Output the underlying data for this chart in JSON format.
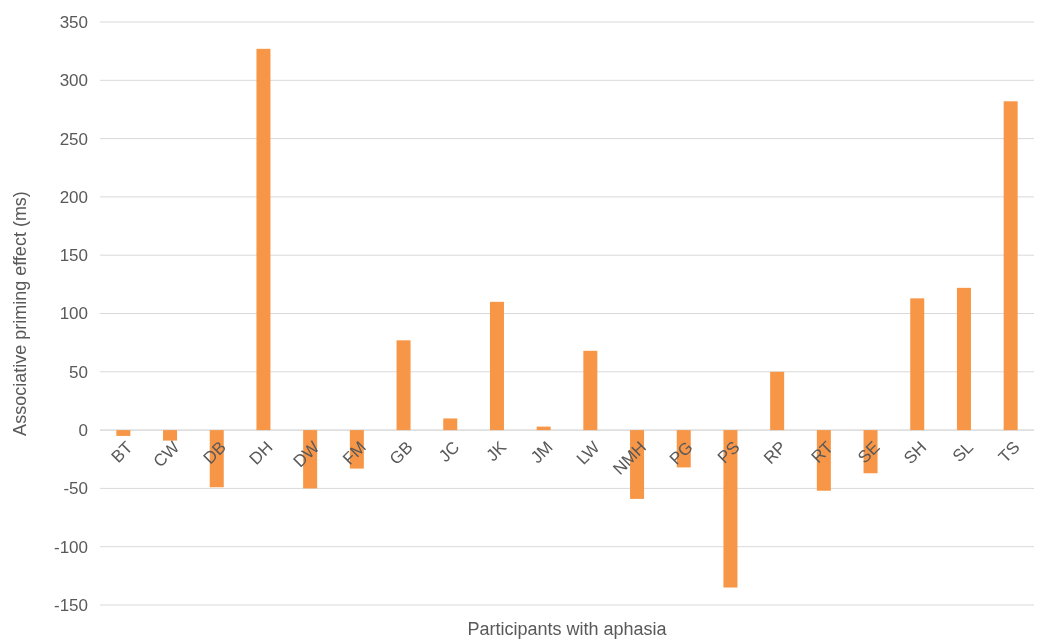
{
  "chart_data": {
    "type": "bar",
    "xlabel": "Participants with aphasia",
    "ylabel": "Associative priming effect (ms)",
    "categories": [
      "BT",
      "CW",
      "DB",
      "DH",
      "DW",
      "FM",
      "GB",
      "JC",
      "JK",
      "JM",
      "LW",
      "NMH",
      "PG",
      "PS",
      "RP",
      "RT",
      "SE",
      "SH",
      "SL",
      "TS"
    ],
    "values": [
      -5,
      -9,
      -49,
      327,
      -50,
      -33,
      77,
      10,
      110,
      3,
      68,
      -59,
      -32,
      -135,
      50,
      -52,
      -37,
      113,
      122,
      282
    ],
    "color": "#f79646",
    "ylim": [
      -150,
      350
    ],
    "yticks": [
      -150,
      -100,
      -50,
      0,
      50,
      100,
      150,
      200,
      250,
      300,
      350
    ],
    "grid": "y"
  }
}
